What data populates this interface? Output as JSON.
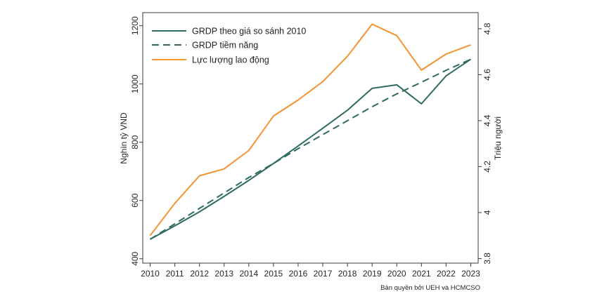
{
  "chart_data": {
    "type": "line",
    "x": [
      2010,
      2011,
      2012,
      2013,
      2014,
      2015,
      2016,
      2017,
      2018,
      2019,
      2020,
      2021,
      2022,
      2023
    ],
    "xlim": [
      2009.7,
      2023.3
    ],
    "ylabel": "Nghìn tỷ VND",
    "ylim": [
      385,
      1245
    ],
    "yticks": [
      400,
      600,
      800,
      1000,
      1200
    ],
    "ylabel_right": "Triệu người",
    "ylim_right": [
      3.78,
      4.87
    ],
    "yticks_right": [
      3.8,
      4,
      4.2,
      4.4,
      4.6,
      4.8
    ],
    "grid": false,
    "legend_position": "top-left",
    "series": [
      {
        "name": "GRDP theo giá so sánh 2010",
        "axis": "left",
        "line_style": "solid",
        "color": "#2f6b62",
        "values": [
          467,
          513,
          561,
          614,
          669,
          727,
          787,
          848,
          910,
          985,
          997,
          932,
          1028,
          1085
        ]
      },
      {
        "name": "GRDP tiềm năng",
        "axis": "left",
        "line_style": "dashed",
        "color": "#2f6b62",
        "values": [
          467,
          520,
          573,
          626,
          679,
          727,
          778,
          826,
          874,
          922,
          966,
          1006,
          1047,
          1085
        ]
      },
      {
        "name": "Lực lượng lao động",
        "axis": "right",
        "line_style": "solid",
        "color": "#f59331",
        "values": [
          3.9,
          4.04,
          4.16,
          4.19,
          4.27,
          4.42,
          4.49,
          4.57,
          4.68,
          4.82,
          4.77,
          4.62,
          4.69,
          4.73
        ]
      }
    ]
  },
  "note": "Bản quyền bởi UEH và HCMCSO"
}
